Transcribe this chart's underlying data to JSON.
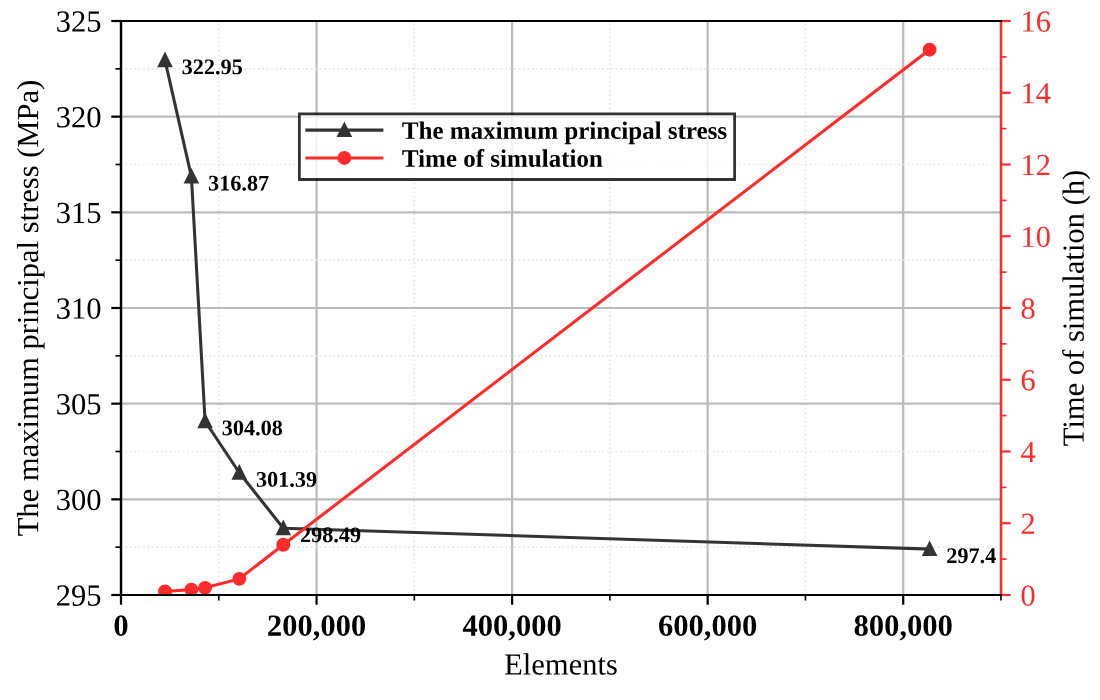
{
  "chart_data": {
    "type": "line",
    "xlabel": "Elements",
    "ylabel": "The maximum principal stress (MPa)",
    "y2label": "Time of simulation (h)",
    "series": [
      {
        "name": "The maximum principal stress",
        "color": "#333333",
        "marker": "triangle",
        "x": [
          45000,
          72000,
          86000,
          121000,
          166000,
          827000
        ],
        "values": [
          322.95,
          316.87,
          304.08,
          301.39,
          298.49,
          297.4
        ],
        "value_labels": [
          "322.95",
          "316.87",
          "304.08",
          "301.39",
          "298.49",
          "297.4"
        ]
      },
      {
        "name": "Time of simulation",
        "color": "#ff2a2a",
        "marker": "circle",
        "axis": "y2",
        "x": [
          45000,
          72000,
          86000,
          121000,
          166000,
          827000
        ],
        "values": [
          0.1,
          0.15,
          0.2,
          0.45,
          1.4,
          15.2
        ]
      }
    ],
    "xlim": [
      0,
      900000
    ],
    "xticks": [
      {
        "value": 0,
        "label": "0"
      },
      {
        "value": 200000,
        "label": "200,000"
      },
      {
        "value": 400000,
        "label": "400,000"
      },
      {
        "value": 600000,
        "label": "600,000"
      },
      {
        "value": 800000,
        "label": "800,000"
      }
    ],
    "ylim": [
      295,
      325
    ],
    "yticks": [
      295,
      300,
      305,
      310,
      315,
      320,
      325
    ],
    "y2lim": [
      0,
      16
    ],
    "y2ticks": [
      0,
      2,
      4,
      6,
      8,
      10,
      12,
      14,
      16
    ],
    "grid": true,
    "legend": "top center"
  }
}
